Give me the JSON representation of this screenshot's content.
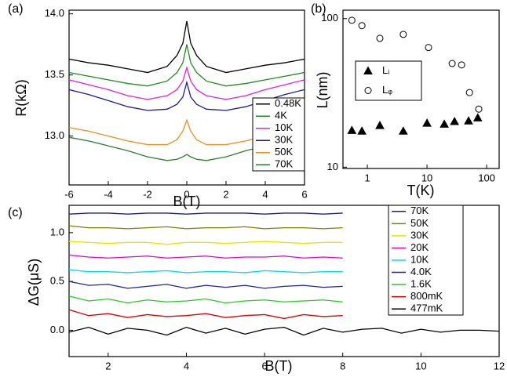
{
  "chart_data": [
    {
      "type": "line",
      "panel_label": "(a)",
      "x_label": "B(T)",
      "y_label": "R(kΩ)",
      "xlim": [
        -6,
        6
      ],
      "xticks": [
        -6,
        -4,
        -2,
        0,
        2,
        4,
        6
      ],
      "ylim": [
        12.6,
        14.03
      ],
      "yticks": [
        {
          "value": 13.0,
          "label": "13.0"
        },
        13.5,
        {
          "value": 14.0,
          "label": "14.0"
        }
      ],
      "x": [
        -6,
        -5,
        -4,
        -3,
        -2,
        -1,
        -0.5,
        -0.2,
        0,
        0.2,
        0.5,
        1,
        2,
        3,
        4,
        5,
        6
      ],
      "series": [
        {
          "name": "0.48K",
          "color": "#000000",
          "values": [
            13.63,
            13.6,
            13.58,
            13.55,
            13.52,
            13.57,
            13.66,
            13.76,
            13.94,
            13.76,
            13.66,
            13.57,
            13.52,
            13.55,
            13.58,
            13.6,
            13.63
          ]
        },
        {
          "name": "4K",
          "color": "#1e8c1e",
          "values": [
            13.52,
            13.49,
            13.46,
            13.43,
            13.41,
            13.45,
            13.52,
            13.6,
            13.75,
            13.6,
            13.52,
            13.45,
            13.41,
            13.43,
            13.46,
            13.49,
            13.52
          ]
        },
        {
          "name": "10K",
          "color": "#e020e0",
          "values": [
            13.46,
            13.42,
            13.38,
            13.33,
            13.3,
            13.33,
            13.38,
            13.45,
            13.56,
            13.45,
            13.38,
            13.33,
            13.3,
            13.33,
            13.38,
            13.42,
            13.46
          ]
        },
        {
          "name": "30K",
          "color": "#1a1a9c",
          "values": [
            13.38,
            13.34,
            13.29,
            13.24,
            13.21,
            13.22,
            13.26,
            13.32,
            13.44,
            13.32,
            13.26,
            13.22,
            13.21,
            13.24,
            13.29,
            13.34,
            13.38
          ]
        },
        {
          "name": "50K",
          "color": "#f08c1e",
          "values": [
            13.07,
            13.04,
            13.0,
            12.96,
            12.93,
            12.93,
            12.97,
            13.04,
            13.13,
            13.04,
            12.97,
            12.93,
            12.93,
            12.96,
            13.0,
            13.04,
            13.07
          ]
        },
        {
          "name": "70K",
          "color": "#2e7d32",
          "values": [
            12.99,
            12.96,
            12.92,
            12.88,
            12.83,
            12.8,
            12.81,
            12.83,
            12.85,
            12.83,
            12.81,
            12.8,
            12.83,
            12.88,
            12.92,
            12.96,
            12.99
          ]
        }
      ]
    },
    {
      "type": "scatter",
      "panel_label": "(b)",
      "x_label": "T(K)",
      "y_label": "L(nm)",
      "log": true,
      "xlim": [
        0.39,
        162
      ],
      "xticks": [
        1,
        10,
        100
      ],
      "ylim": [
        9.8,
        114
      ],
      "yticks": [
        10,
        100
      ],
      "series": [
        {
          "name": "Lᵢ",
          "marker": "triangle",
          "filled": true,
          "color": "#000000",
          "x": [
            0.55,
            0.81,
            1.62,
            4.0,
            10,
            19.5,
            28.9,
            49.7,
            71
          ],
          "values": [
            17.7,
            17.5,
            19.1,
            17.5,
            19.8,
            19.5,
            20.3,
            20.5,
            21.5
          ]
        },
        {
          "name": "Lᵩ",
          "marker": "circle",
          "filled": false,
          "color": "#000000",
          "x": [
            0.55,
            0.81,
            1.62,
            4.0,
            10.6,
            26.4,
            38,
            51.5,
            73.8
          ],
          "values": [
            97.5,
            89.7,
            73.7,
            78.3,
            63.9,
            49.9,
            48.8,
            31.8,
            24.6
          ]
        }
      ]
    },
    {
      "type": "line",
      "panel_label": "(c)",
      "x_label": "B(T)",
      "y_label": "ΔG(μS)",
      "xlim": [
        1,
        12
      ],
      "xticks": [
        2,
        4,
        6,
        8,
        10,
        12
      ],
      "ylim": [
        -0.27,
        1.28
      ],
      "yticks": [
        {
          "value": 0.0,
          "label": "0.0"
        },
        0.5,
        {
          "value": 1.0,
          "label": "1.0"
        }
      ],
      "series": [
        {
          "name": "70K",
          "color": "#1f1f7a",
          "x": [
            1,
            1.5,
            2,
            2.5,
            3,
            3.5,
            4,
            4.5,
            5,
            5.5,
            6,
            6.5,
            7,
            7.5,
            8
          ],
          "values": [
            1.19,
            1.2,
            1.2,
            1.19,
            1.2,
            1.2,
            1.19,
            1.2,
            1.2,
            1.2,
            1.19,
            1.2,
            1.2,
            1.19,
            1.2
          ]
        },
        {
          "name": "50K",
          "color": "#808000",
          "x": [
            1,
            1.5,
            2,
            2.5,
            3,
            3.5,
            4,
            4.5,
            5,
            5.5,
            6,
            6.5,
            7,
            7.5,
            8
          ],
          "values": [
            1.07,
            1.05,
            1.05,
            1.04,
            1.05,
            1.06,
            1.04,
            1.05,
            1.05,
            1.06,
            1.04,
            1.05,
            1.05,
            1.04,
            1.05
          ]
        },
        {
          "name": "30K",
          "color": "#e6e600",
          "x": [
            1,
            1.5,
            2,
            2.5,
            3,
            3.5,
            4,
            4.5,
            5,
            5.5,
            6,
            6.5,
            7,
            7.5,
            8
          ],
          "values": [
            0.91,
            0.9,
            0.89,
            0.9,
            0.9,
            0.88,
            0.9,
            0.9,
            0.89,
            0.9,
            0.91,
            0.9,
            0.89,
            0.9,
            0.9
          ]
        },
        {
          "name": "20K",
          "color": "#e000e0",
          "x": [
            1,
            1.5,
            2,
            2.5,
            3,
            3.5,
            4,
            4.5,
            5,
            5.5,
            6,
            6.5,
            7,
            7.5,
            8
          ],
          "values": [
            0.77,
            0.75,
            0.74,
            0.75,
            0.76,
            0.74,
            0.75,
            0.76,
            0.74,
            0.75,
            0.75,
            0.76,
            0.74,
            0.75,
            0.74
          ]
        },
        {
          "name": "10K",
          "color": "#00e0e0",
          "x": [
            1,
            1.5,
            2,
            2.5,
            3,
            3.5,
            4,
            4.5,
            5,
            5.5,
            6,
            6.5,
            7,
            7.5,
            8
          ],
          "values": [
            0.62,
            0.6,
            0.6,
            0.59,
            0.6,
            0.61,
            0.59,
            0.6,
            0.6,
            0.59,
            0.61,
            0.6,
            0.59,
            0.6,
            0.6
          ]
        },
        {
          "name": "4.0K",
          "color": "#2020b0",
          "x": [
            1,
            1.5,
            2,
            2.5,
            3,
            3.5,
            4,
            4.5,
            5,
            5.5,
            6,
            6.5,
            7,
            7.5,
            8
          ],
          "values": [
            0.5,
            0.46,
            0.47,
            0.43,
            0.45,
            0.47,
            0.43,
            0.46,
            0.44,
            0.46,
            0.43,
            0.45,
            0.46,
            0.44,
            0.45
          ]
        },
        {
          "name": "1.6K",
          "color": "#20d020",
          "x": [
            1,
            1.5,
            2,
            2.5,
            3,
            3.5,
            4,
            4.5,
            5,
            5.5,
            6,
            6.5,
            7,
            7.5,
            8
          ],
          "values": [
            0.35,
            0.3,
            0.32,
            0.28,
            0.31,
            0.29,
            0.3,
            0.32,
            0.28,
            0.3,
            0.31,
            0.29,
            0.3,
            0.31,
            0.29
          ]
        },
        {
          "name": "800mK",
          "color": "#e00000",
          "x": [
            1,
            1.5,
            2,
            2.5,
            3,
            3.5,
            4,
            4.5,
            5,
            5.5,
            6,
            6.5,
            7,
            7.5,
            8
          ],
          "values": [
            0.21,
            0.15,
            0.17,
            0.13,
            0.16,
            0.14,
            0.15,
            0.17,
            0.13,
            0.15,
            0.16,
            0.12,
            0.16,
            0.14,
            0.15
          ]
        },
        {
          "name": "477mK",
          "color": "#000000",
          "x": [
            1,
            1.5,
            2,
            2.5,
            3,
            3.5,
            4,
            4.5,
            5,
            5.5,
            6,
            6.5,
            7,
            7.5,
            8,
            8.5,
            9,
            9.5,
            10,
            10.5,
            11,
            11.5,
            12
          ],
          "values": [
            -0.02,
            0.03,
            -0.04,
            0.02,
            0.0,
            -0.05,
            0.03,
            -0.03,
            0.02,
            -0.04,
            0.01,
            0.03,
            -0.05,
            0.02,
            -0.02,
            0.01,
            0.02,
            -0.03,
            0.01,
            -0.02,
            0.0,
            0.0,
            -0.01
          ]
        }
      ]
    }
  ]
}
